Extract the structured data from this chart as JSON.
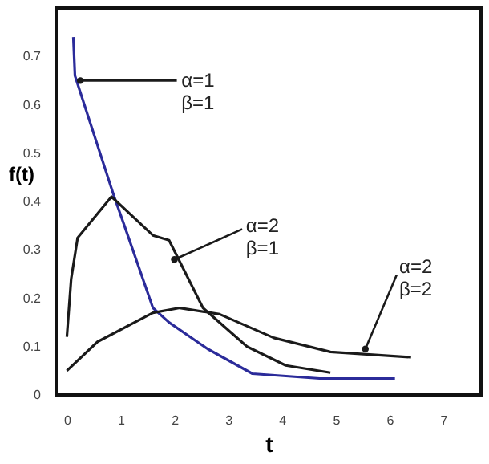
{
  "chart_data": {
    "type": "line",
    "xlabel": "t",
    "ylabel": "f(t)",
    "series": [
      {
        "color": "#2b2b9a",
        "x": [
          0.12,
          0.15,
          0.88,
          1.07,
          1.6,
          1.9,
          2.62,
          3.45,
          4.7,
          6.1
        ],
        "values": [
          0.74,
          0.66,
          0.41,
          0.35,
          0.18,
          0.15,
          0.095,
          0.044,
          0.034,
          0.034
        ]
      },
      {
        "color": "#1a1a1a",
        "x": [
          0,
          0.08,
          0.2,
          0.83,
          1.6,
          1.9,
          2.53,
          3.35,
          4.07,
          4.9
        ],
        "values": [
          0.12,
          0.24,
          0.325,
          0.41,
          0.33,
          0.32,
          0.18,
          0.1,
          0.061,
          0.046
        ]
      },
      {
        "color": "#1a1a1a",
        "x": [
          0,
          0.57,
          1.6,
          2.1,
          2.84,
          3.85,
          4.9,
          6.4
        ],
        "values": [
          0.05,
          0.11,
          0.17,
          0.18,
          0.167,
          0.118,
          0.089,
          0.078
        ]
      }
    ],
    "annotations": [
      {
        "text": "α=1\nβ=1",
        "x": 0.25,
        "y": 0.65
      },
      {
        "text": "α=2\nβ=1",
        "x": 2.0,
        "y": 0.28
      },
      {
        "text": "α=2\nβ=2",
        "x": 5.55,
        "y": 0.095
      }
    ],
    "xlim": [
      -0.2,
      7.7
    ],
    "ylim": [
      0,
      0.8
    ],
    "xticks": [
      0,
      1,
      2,
      3,
      4,
      5,
      6,
      7
    ],
    "yticks": [
      0,
      0.1,
      0.2,
      0.3,
      0.4,
      0.5,
      0.6,
      0.7
    ],
    "grid": false,
    "legend": false
  }
}
